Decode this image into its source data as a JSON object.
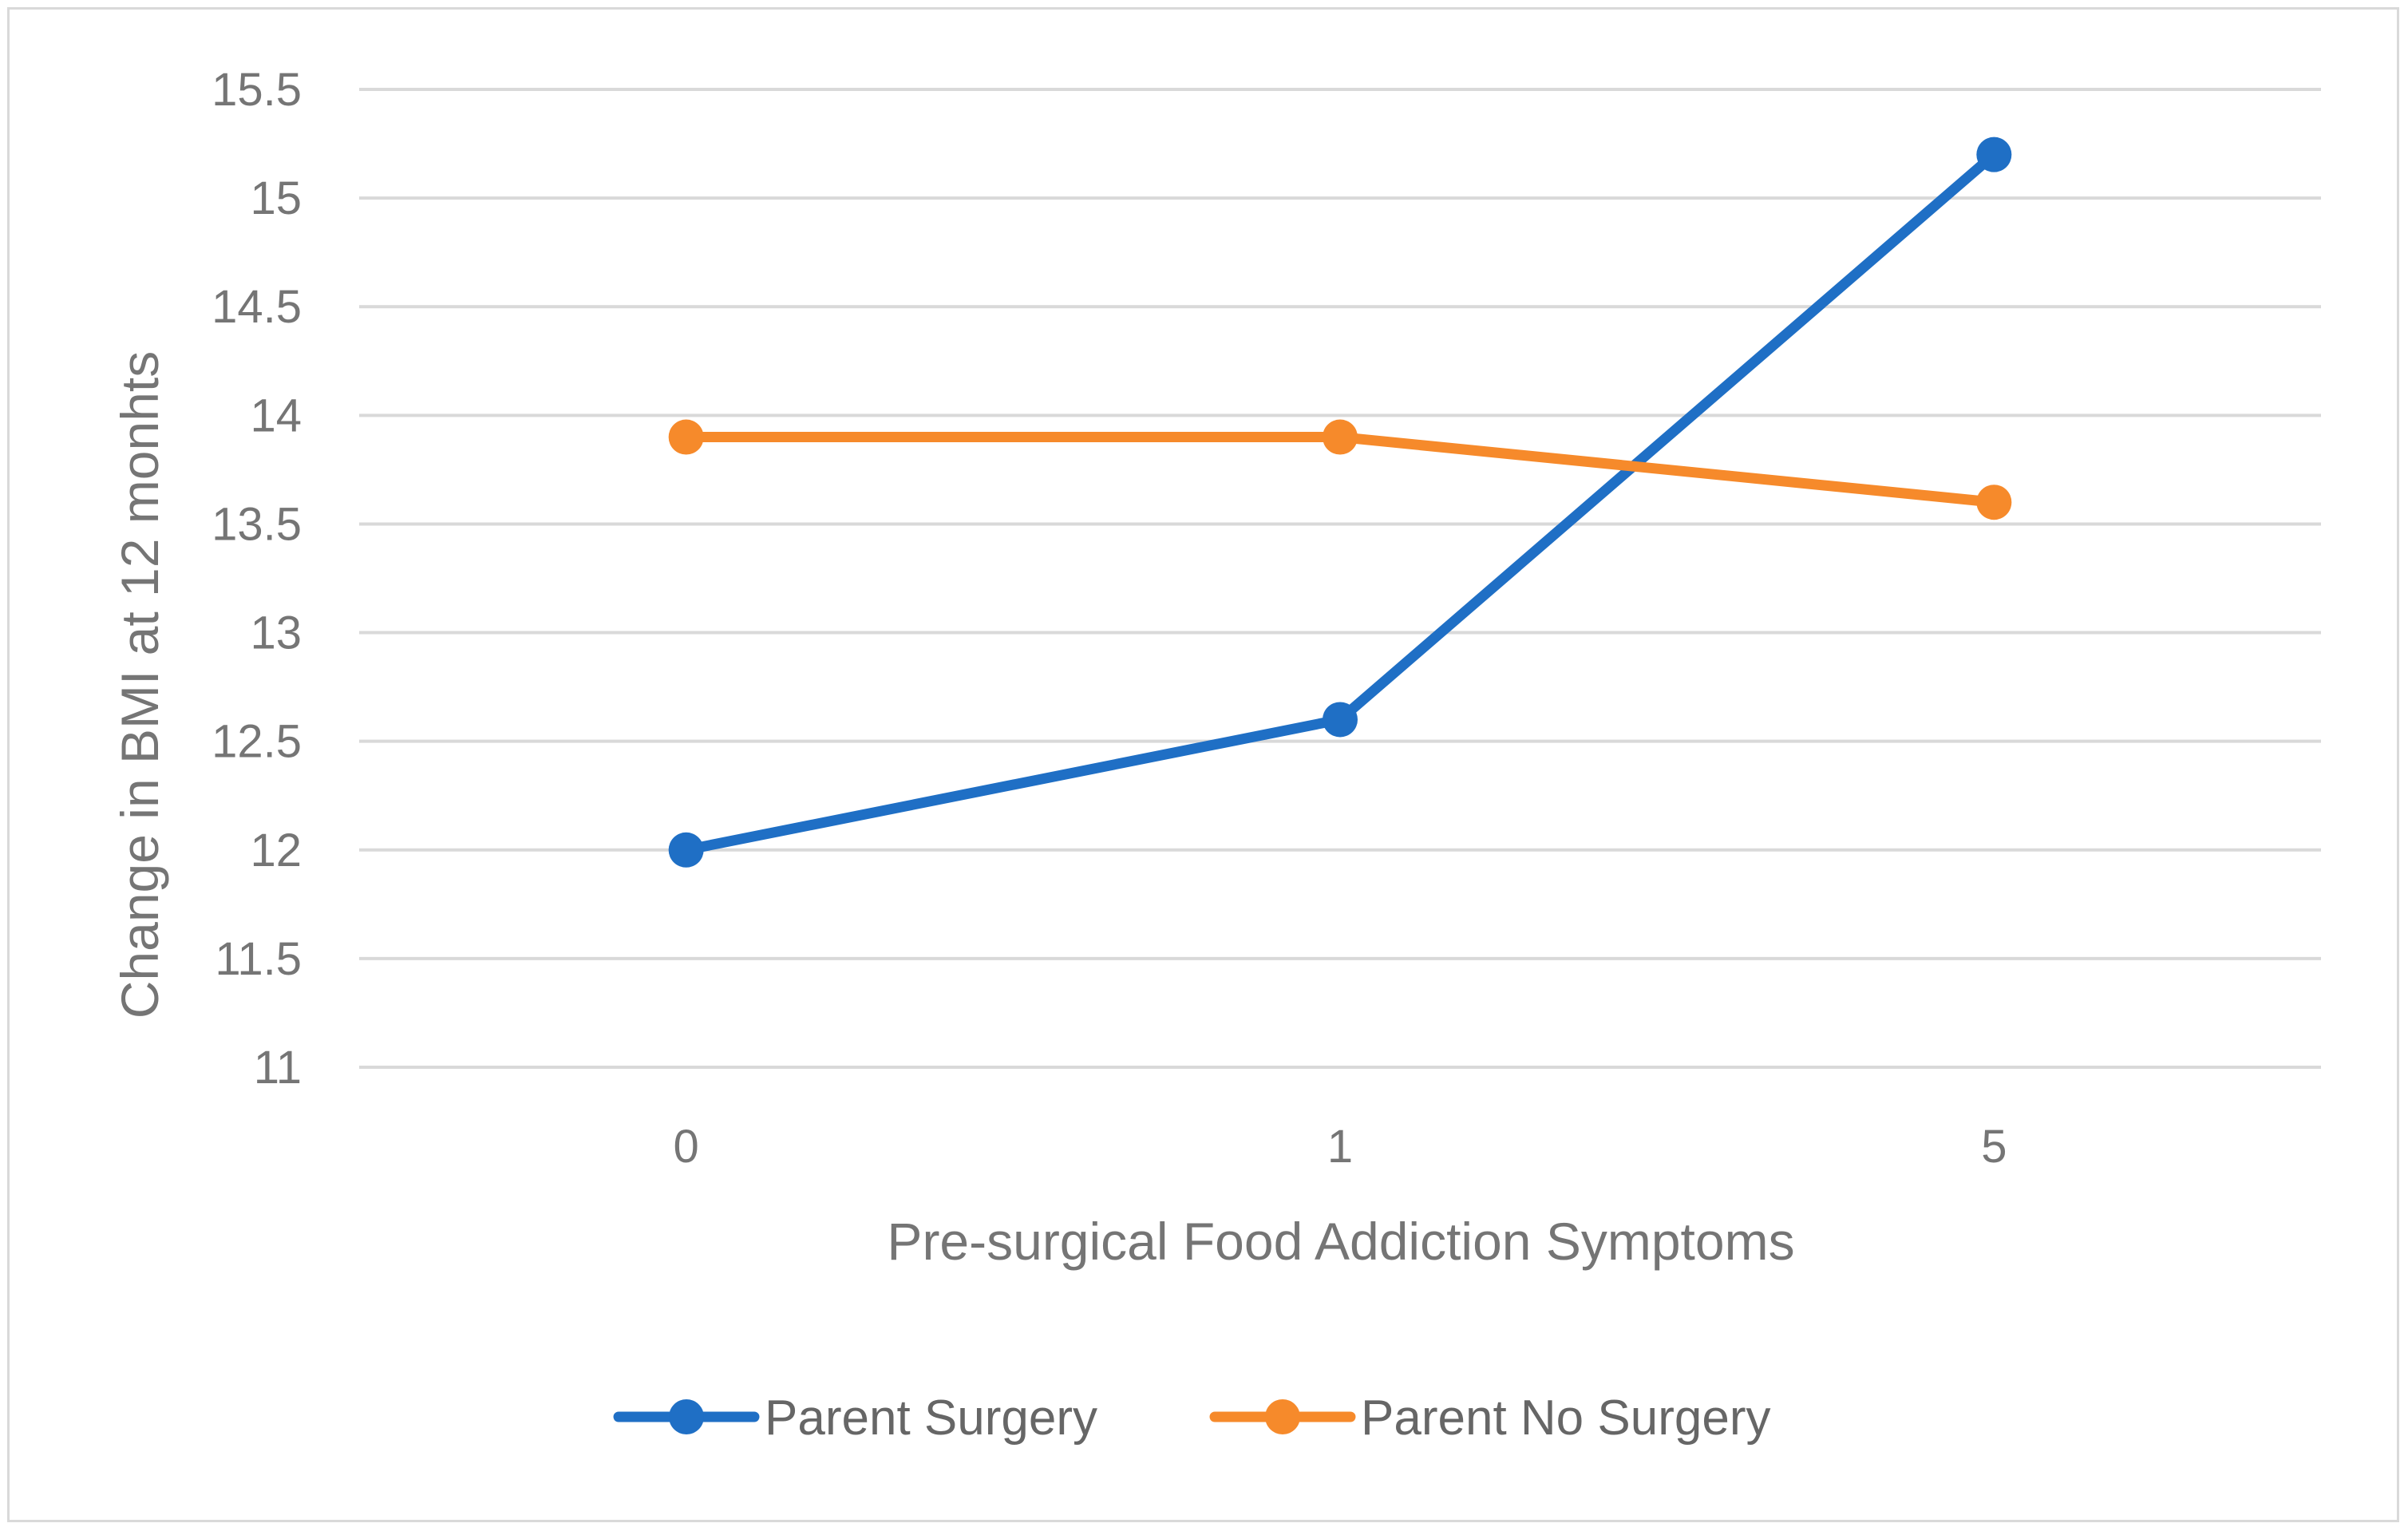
{
  "chart_data": {
    "type": "line",
    "title": "",
    "xlabel": "Pre-surgical Food Addiction Symptoms",
    "ylabel": "Change in BMI at 12 monhts",
    "categories": [
      "0",
      "1",
      "5"
    ],
    "ylim": [
      11,
      15.5
    ],
    "yticks": [
      11,
      11.5,
      12,
      12.5,
      13,
      13.5,
      14,
      14.5,
      15,
      15.5
    ],
    "ytick_labels": [
      "11",
      "11.5",
      "12",
      "12.5",
      "13",
      "13.5",
      "14",
      "14.5",
      "15",
      "15.5"
    ],
    "grid": true,
    "legend_position": "bottom",
    "series": [
      {
        "name": "Parent Surgery",
        "values": [
          12.0,
          12.6,
          15.2
        ],
        "color": "#1f6fc5"
      },
      {
        "name": "Parent No Surgery",
        "values": [
          13.9,
          13.9,
          13.6
        ],
        "color": "#f68a2b"
      }
    ]
  }
}
